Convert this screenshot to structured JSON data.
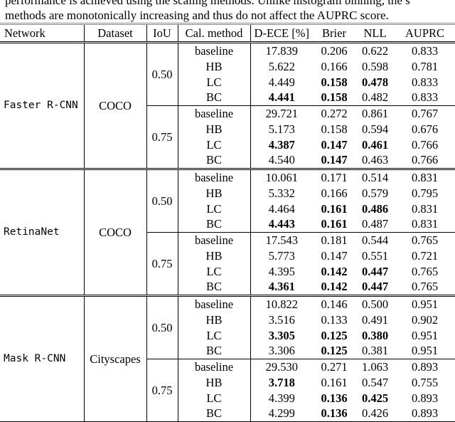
{
  "caption": {
    "line1": "performance is achieved using the scaling methods. Unlike histogram binning, the s",
    "line2": "methods are monotonically increasing and thus do not affect the AUPRC score."
  },
  "table": {
    "headers": [
      "Network",
      "Dataset",
      "IoU",
      "Cal. method",
      "D-ECE [%]",
      "Brier",
      "NLL",
      "AUPRC"
    ],
    "groups": [
      {
        "network": "Faster R-CNN",
        "dataset": "COCO",
        "iou_blocks": [
          {
            "iou": "0.50",
            "rows": [
              {
                "method": "baseline",
                "dece": "17.839",
                "brier": "0.206",
                "nll": "0.622",
                "auprc": "0.833",
                "bold": []
              },
              {
                "method": "HB",
                "dece": "5.622",
                "brier": "0.166",
                "nll": "0.598",
                "auprc": "0.781",
                "bold": []
              },
              {
                "method": "LC",
                "dece": "4.449",
                "brier": "0.158",
                "nll": "0.478",
                "auprc": "0.833",
                "bold": [
                  "brier",
                  "nll"
                ]
              },
              {
                "method": "BC",
                "dece": "4.441",
                "brier": "0.158",
                "nll": "0.482",
                "auprc": "0.833",
                "bold": [
                  "dece",
                  "brier"
                ]
              }
            ]
          },
          {
            "iou": "0.75",
            "rows": [
              {
                "method": "baseline",
                "dece": "29.721",
                "brier": "0.272",
                "nll": "0.861",
                "auprc": "0.767",
                "bold": []
              },
              {
                "method": "HB",
                "dece": "5.173",
                "brier": "0.158",
                "nll": "0.594",
                "auprc": "0.676",
                "bold": []
              },
              {
                "method": "LC",
                "dece": "4.387",
                "brier": "0.147",
                "nll": "0.461",
                "auprc": "0.766",
                "bold": [
                  "dece",
                  "brier",
                  "nll"
                ]
              },
              {
                "method": "BC",
                "dece": "4.540",
                "brier": "0.147",
                "nll": "0.463",
                "auprc": "0.766",
                "bold": [
                  "brier"
                ]
              }
            ]
          }
        ]
      },
      {
        "network": "RetinaNet",
        "dataset": "COCO",
        "iou_blocks": [
          {
            "iou": "0.50",
            "rows": [
              {
                "method": "baseline",
                "dece": "10.061",
                "brier": "0.171",
                "nll": "0.514",
                "auprc": "0.831",
                "bold": []
              },
              {
                "method": "HB",
                "dece": "5.332",
                "brier": "0.166",
                "nll": "0.579",
                "auprc": "0.795",
                "bold": []
              },
              {
                "method": "LC",
                "dece": "4.464",
                "brier": "0.161",
                "nll": "0.486",
                "auprc": "0.831",
                "bold": [
                  "brier",
                  "nll"
                ]
              },
              {
                "method": "BC",
                "dece": "4.443",
                "brier": "0.161",
                "nll": "0.487",
                "auprc": "0.831",
                "bold": [
                  "dece",
                  "brier"
                ]
              }
            ]
          },
          {
            "iou": "0.75",
            "rows": [
              {
                "method": "baseline",
                "dece": "17.543",
                "brier": "0.181",
                "nll": "0.544",
                "auprc": "0.765",
                "bold": []
              },
              {
                "method": "HB",
                "dece": "5.773",
                "brier": "0.147",
                "nll": "0.551",
                "auprc": "0.721",
                "bold": []
              },
              {
                "method": "LC",
                "dece": "4.395",
                "brier": "0.142",
                "nll": "0.447",
                "auprc": "0.765",
                "bold": [
                  "brier",
                  "nll"
                ]
              },
              {
                "method": "BC",
                "dece": "4.361",
                "brier": "0.142",
                "nll": "0.447",
                "auprc": "0.765",
                "bold": [
                  "dece",
                  "brier",
                  "nll"
                ]
              }
            ]
          }
        ]
      },
      {
        "network": "Mask R-CNN",
        "dataset": "Cityscapes",
        "iou_blocks": [
          {
            "iou": "0.50",
            "rows": [
              {
                "method": "baseline",
                "dece": "10.822",
                "brier": "0.146",
                "nll": "0.500",
                "auprc": "0.951",
                "bold": []
              },
              {
                "method": "HB",
                "dece": "3.516",
                "brier": "0.133",
                "nll": "0.491",
                "auprc": "0.902",
                "bold": []
              },
              {
                "method": "LC",
                "dece": "3.305",
                "brier": "0.125",
                "nll": "0.380",
                "auprc": "0.951",
                "bold": [
                  "dece",
                  "brier",
                  "nll"
                ]
              },
              {
                "method": "BC",
                "dece": "3.306",
                "brier": "0.125",
                "nll": "0.381",
                "auprc": "0.951",
                "bold": [
                  "brier"
                ]
              }
            ]
          },
          {
            "iou": "0.75",
            "rows": [
              {
                "method": "baseline",
                "dece": "29.530",
                "brier": "0.271",
                "nll": "1.063",
                "auprc": "0.893",
                "bold": []
              },
              {
                "method": "HB",
                "dece": "3.718",
                "brier": "0.161",
                "nll": "0.547",
                "auprc": "0.755",
                "bold": [
                  "dece"
                ]
              },
              {
                "method": "LC",
                "dece": "4.399",
                "brier": "0.136",
                "nll": "0.425",
                "auprc": "0.893",
                "bold": [
                  "brier",
                  "nll"
                ]
              },
              {
                "method": "BC",
                "dece": "4.299",
                "brier": "0.136",
                "nll": "0.426",
                "auprc": "0.893",
                "bold": [
                  "brier"
                ]
              }
            ]
          }
        ]
      }
    ]
  }
}
